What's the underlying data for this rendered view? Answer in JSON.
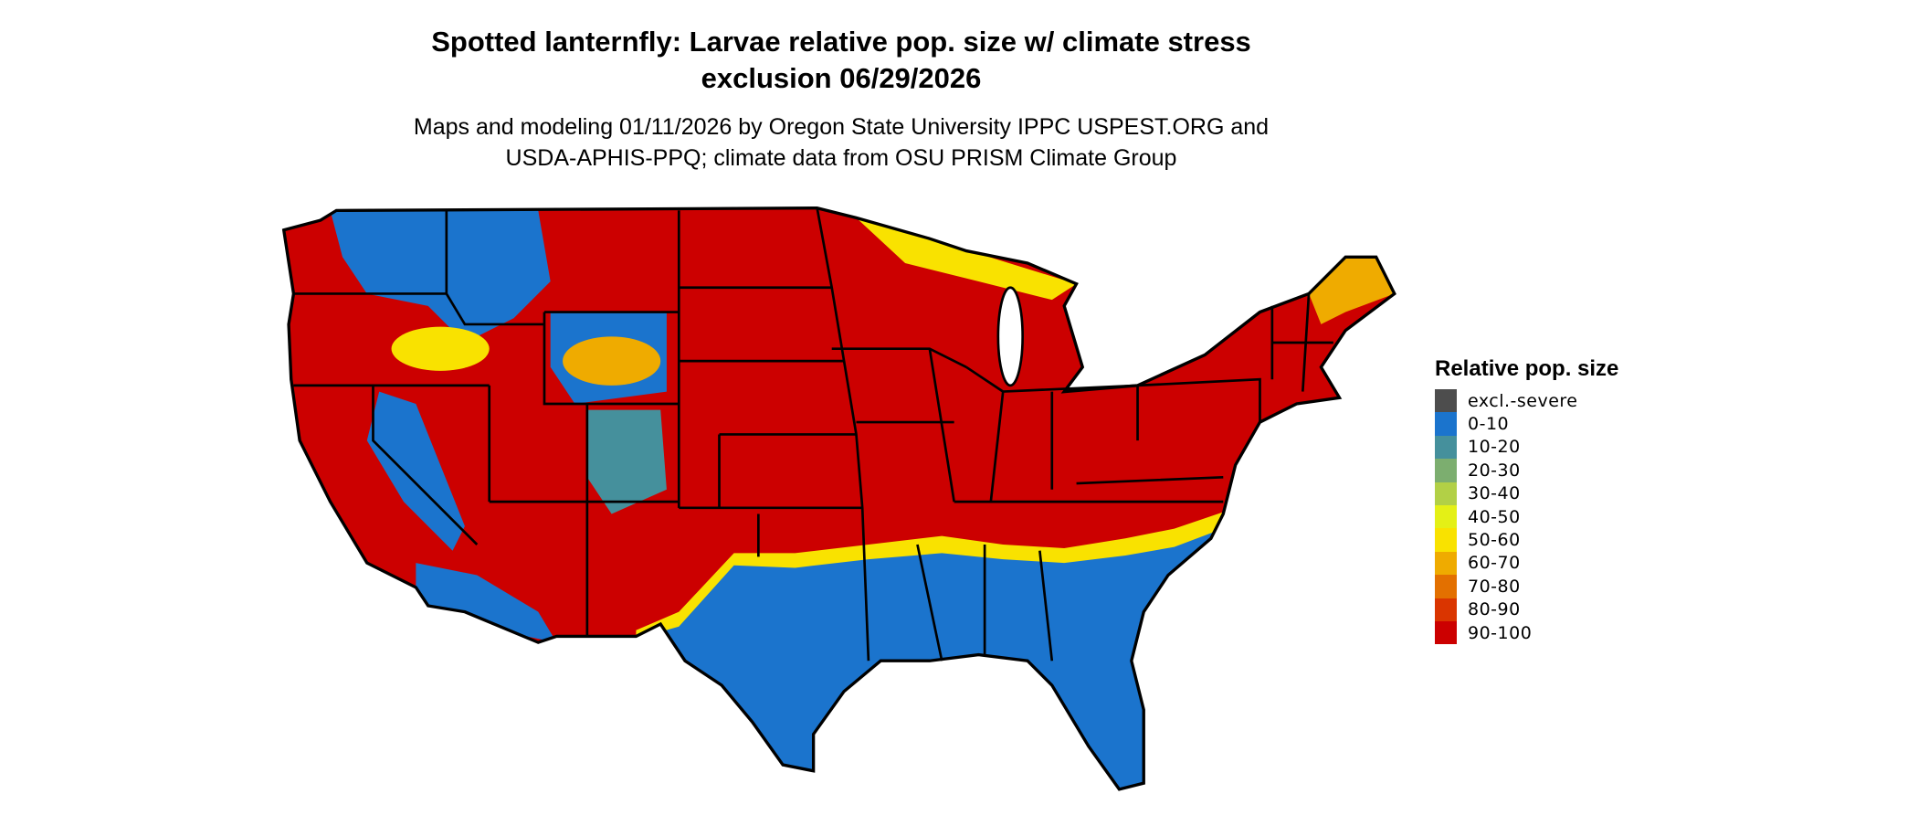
{
  "title": {
    "line1": "Spotted lanternfly: Larvae relative pop. size w/ climate stress",
    "line2": "exclusion 06/29/2026"
  },
  "subtitle": {
    "line1": "Maps and modeling 01/11/2026 by Oregon State University IPPC USPEST.ORG and",
    "line2": "USDA-APHIS-PPQ; climate data from OSU PRISM Climate Group"
  },
  "legend": {
    "title": "Relative pop. size",
    "items": [
      {
        "label": "excl.-severe",
        "color": "#4d4d4d"
      },
      {
        "label": "0-10",
        "color": "#1b74cd"
      },
      {
        "label": "10-20",
        "color": "#45909c"
      },
      {
        "label": "20-30",
        "color": "#7cae6f"
      },
      {
        "label": "30-40",
        "color": "#b2d046"
      },
      {
        "label": "40-50",
        "color": "#e4f016"
      },
      {
        "label": "50-60",
        "color": "#f9e200"
      },
      {
        "label": "60-70",
        "color": "#efab00"
      },
      {
        "label": "70-80",
        "color": "#e37000"
      },
      {
        "label": "80-90",
        "color": "#da3500"
      },
      {
        "label": "90-100",
        "color": "#cc0000"
      }
    ]
  }
}
